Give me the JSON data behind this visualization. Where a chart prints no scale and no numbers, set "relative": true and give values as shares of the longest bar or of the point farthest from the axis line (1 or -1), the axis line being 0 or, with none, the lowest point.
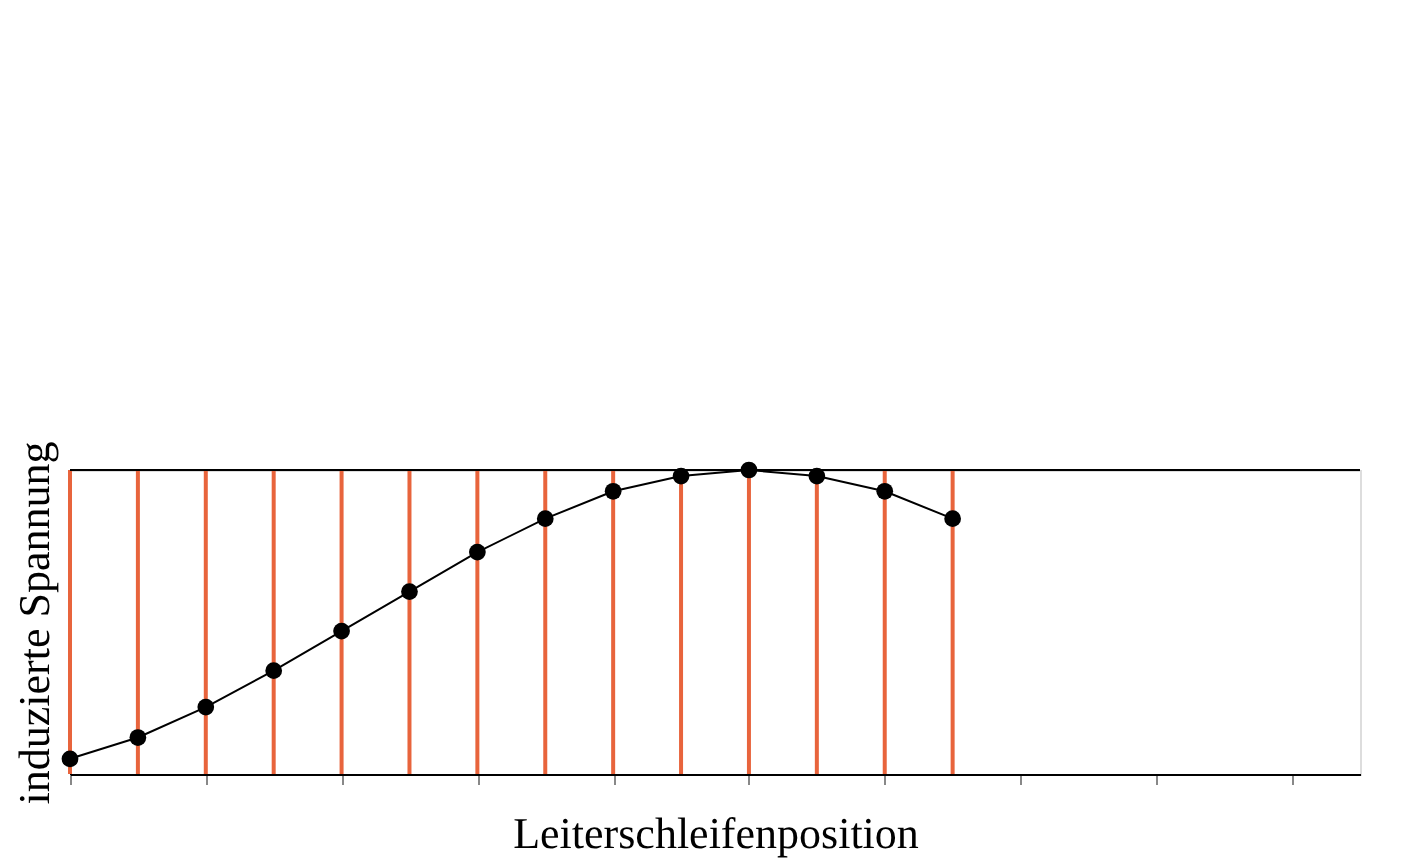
{
  "chart_data": {
    "type": "line",
    "relative": true,
    "xlabel": "Leiterschleifenposition",
    "ylabel": "induzierte Spannung",
    "tick_labels": false,
    "marker": "circle",
    "line_style": "solid",
    "grid": "x",
    "categories": [
      null,
      null,
      null,
      null,
      null,
      null,
      null,
      null,
      null,
      null,
      null,
      null,
      null,
      null,
      null,
      null,
      null,
      null,
      null,
      null
    ],
    "series": [
      {
        "color": "#000000",
        "values": [
          0.05,
          0.12,
          0.22,
          0.34,
          0.47,
          0.6,
          0.73,
          0.84,
          0.93,
          0.98,
          1,
          0.98,
          0.93,
          0.84,
          null,
          null,
          null,
          null,
          null,
          null
        ]
      }
    ]
  }
}
